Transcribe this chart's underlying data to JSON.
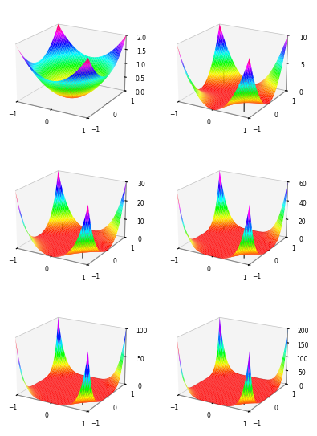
{
  "functions": [
    {
      "zlim": [
        0,
        2
      ],
      "zticks": [
        0.0,
        0.5,
        1.0,
        1.5,
        2.0
      ],
      "scale": 1.0
    },
    {
      "zlim": [
        0,
        10
      ],
      "zticks": [
        0,
        5,
        10
      ],
      "scale": 1.0
    },
    {
      "zlim": [
        0,
        30
      ],
      "zticks": [
        0,
        10,
        20,
        30
      ],
      "scale": 1.0
    },
    {
      "zlim": [
        0,
        60
      ],
      "zticks": [
        0,
        20,
        40,
        60
      ],
      "scale": 1.0
    },
    {
      "zlim": [
        0,
        100
      ],
      "zticks": [
        0,
        50,
        100
      ],
      "scale": 1.0
    },
    {
      "zlim": [
        0,
        200
      ],
      "zticks": [
        0,
        50,
        100,
        150,
        200
      ],
      "scale": 1.0
    }
  ],
  "xlim": [
    -1.2,
    1.2
  ],
  "ylim": [
    -1.2,
    1.2
  ],
  "xticks": [
    -1,
    0,
    1
  ],
  "yticks": [
    -1,
    0,
    1
  ],
  "elev": 20,
  "azim": -60,
  "grid_res": 50,
  "bg_color": "#ffffff",
  "line_color": "#111111",
  "stems": [
    [
      [
        0.0,
        0.0
      ]
    ],
    [
      [
        -0.7,
        0.7
      ],
      [
        0.7,
        -0.7
      ]
    ],
    [
      [
        -0.7,
        0.7
      ],
      [
        0.7,
        -0.7
      ]
    ],
    [
      [
        -0.7,
        0.7
      ],
      [
        0.7,
        -0.7
      ]
    ],
    [
      [
        -0.7,
        0.7
      ],
      [
        0.0,
        0.0
      ],
      [
        0.7,
        -0.7
      ]
    ],
    [
      [
        -0.7,
        0.7
      ],
      [
        0.0,
        0.0
      ],
      [
        0.7,
        -0.7
      ]
    ]
  ]
}
